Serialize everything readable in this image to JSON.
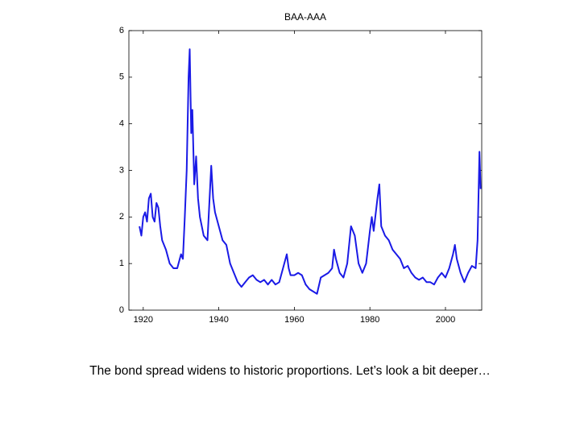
{
  "chart_data": {
    "type": "line",
    "title": "BAA-AAA",
    "x": [
      1919,
      1919.5,
      1920,
      1920.5,
      1921,
      1921.5,
      1922,
      1922.5,
      1923,
      1923.5,
      1924,
      1924.5,
      1925,
      1926,
      1927,
      1928,
      1929,
      1930,
      1930.5,
      1931,
      1931.5,
      1932,
      1932.3,
      1932.7,
      1933,
      1933.5,
      1934,
      1934.5,
      1935,
      1936,
      1937,
      1938,
      1938.5,
      1939,
      1940,
      1941,
      1942,
      1943,
      1944,
      1945,
      1946,
      1947,
      1948,
      1949,
      1950,
      1951,
      1952,
      1953,
      1954,
      1955,
      1956,
      1957,
      1958,
      1958.5,
      1959,
      1960,
      1961,
      1962,
      1963,
      1964,
      1965,
      1966,
      1967,
      1968,
      1969,
      1970,
      1970.5,
      1971,
      1972,
      1973,
      1974,
      1975,
      1976,
      1977,
      1978,
      1979,
      1980,
      1980.5,
      1981,
      1982,
      1982.5,
      1983,
      1984,
      1985,
      1986,
      1987,
      1988,
      1989,
      1990,
      1991,
      1992,
      1993,
      1994,
      1995,
      1996,
      1997,
      1998,
      1999,
      2000,
      2001,
      2002,
      2002.5,
      2003,
      2004,
      2005,
      2006,
      2007,
      2008,
      2008.5,
      2009,
      2009.3
    ],
    "values": [
      1.8,
      1.6,
      2.0,
      2.1,
      1.9,
      2.4,
      2.5,
      2.0,
      1.9,
      2.3,
      2.2,
      1.8,
      1.5,
      1.3,
      1.0,
      0.9,
      0.9,
      1.2,
      1.1,
      2.0,
      3.0,
      5.0,
      5.6,
      3.8,
      4.3,
      2.7,
      3.3,
      2.4,
      2.0,
      1.6,
      1.5,
      3.1,
      2.4,
      2.1,
      1.8,
      1.5,
      1.4,
      1.0,
      0.8,
      0.6,
      0.5,
      0.6,
      0.7,
      0.75,
      0.65,
      0.6,
      0.65,
      0.55,
      0.65,
      0.55,
      0.6,
      0.9,
      1.2,
      0.9,
      0.75,
      0.75,
      0.8,
      0.75,
      0.55,
      0.45,
      0.4,
      0.35,
      0.7,
      0.75,
      0.8,
      0.9,
      1.3,
      1.1,
      0.8,
      0.7,
      1.0,
      1.8,
      1.6,
      1.0,
      0.8,
      1.0,
      1.7,
      2.0,
      1.7,
      2.4,
      2.7,
      1.8,
      1.6,
      1.5,
      1.3,
      1.2,
      1.1,
      0.9,
      0.95,
      0.8,
      0.7,
      0.65,
      0.7,
      0.6,
      0.6,
      0.55,
      0.7,
      0.8,
      0.7,
      0.9,
      1.2,
      1.4,
      1.1,
      0.8,
      0.6,
      0.8,
      0.95,
      0.9,
      1.5,
      3.4,
      2.6
    ],
    "color": "#1a1ae6",
    "xlim": [
      1916.2,
      2009.6
    ],
    "ylim": [
      0,
      6
    ],
    "xticks": [
      1920,
      1940,
      1960,
      1980,
      2000
    ],
    "yticks": [
      0,
      1,
      2,
      3,
      4,
      5,
      6
    ]
  },
  "caption": "The bond spread widens to historic proportions. Let’s look a bit deeper…"
}
